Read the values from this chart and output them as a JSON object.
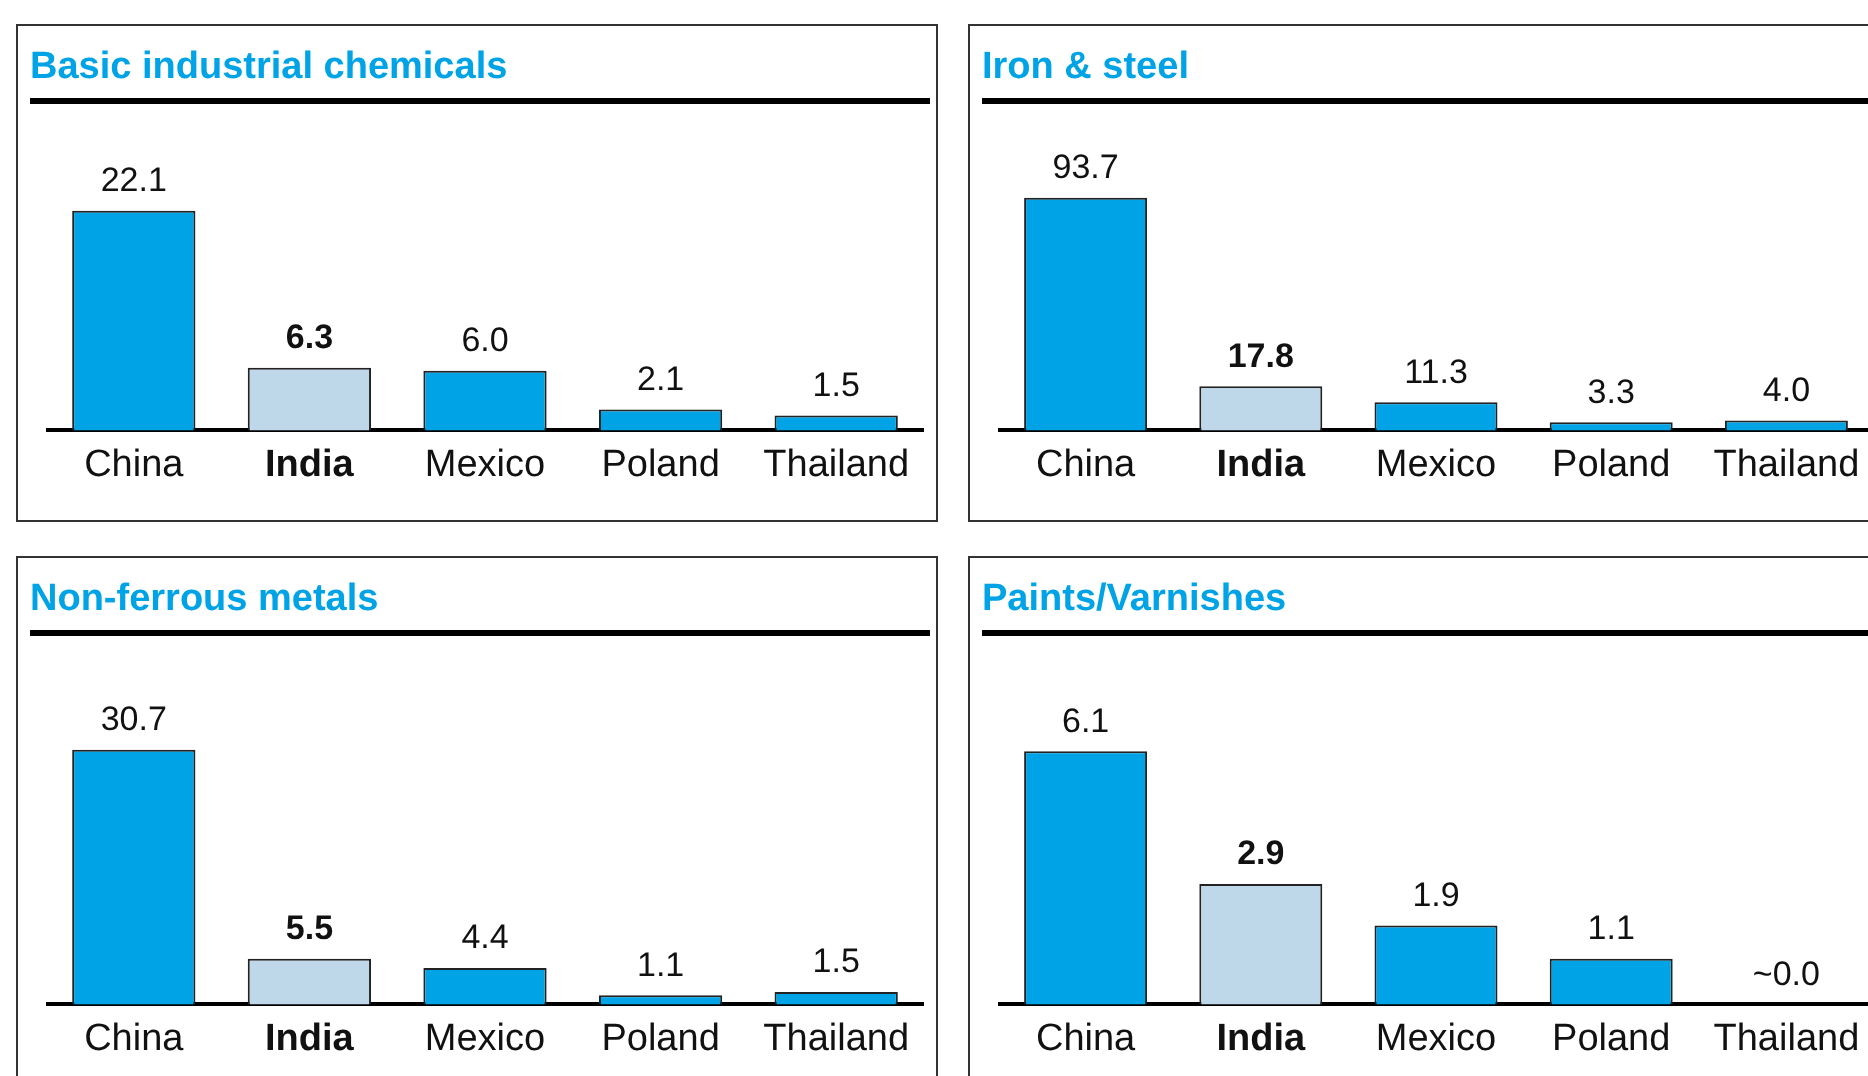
{
  "chart_data": [
    {
      "type": "bar",
      "title": "Basic industrial chemicals",
      "categories": [
        "China",
        "India",
        "Mexico",
        "Poland",
        "Thailand"
      ],
      "values": [
        22.1,
        6.3,
        6.0,
        2.1,
        1.5
      ],
      "value_labels": [
        "22.1",
        "6.3",
        "6.0",
        "2.1",
        "1.5"
      ],
      "colors": [
        "#00a3e6",
        "#bed8ea",
        "#00a3e6",
        "#00a3e6",
        "#00a3e6"
      ],
      "tick_labels": "x",
      "grid": false,
      "legend": false
    },
    {
      "type": "bar",
      "title": "Iron & steel",
      "categories": [
        "China",
        "India",
        "Mexico",
        "Poland",
        "Thailand"
      ],
      "values": [
        93.7,
        17.8,
        11.3,
        3.3,
        4.0
      ],
      "value_labels": [
        "93.7",
        "17.8",
        "11.3",
        "3.3",
        "4.0"
      ],
      "colors": [
        "#00a3e6",
        "#bed8ea",
        "#00a3e6",
        "#00a3e6",
        "#00a3e6"
      ],
      "tick_labels": "x",
      "grid": false,
      "legend": false
    },
    {
      "type": "bar",
      "title": "Non-ferrous metals",
      "categories": [
        "China",
        "India",
        "Mexico",
        "Poland",
        "Thailand"
      ],
      "values": [
        30.7,
        5.5,
        4.4,
        1.1,
        1.5
      ],
      "value_labels": [
        "30.7",
        "5.5",
        "4.4",
        "1.1",
        "1.5"
      ],
      "colors": [
        "#00a3e6",
        "#bed8ea",
        "#00a3e6",
        "#00a3e6",
        "#00a3e6"
      ],
      "tick_labels": "x",
      "grid": false,
      "legend": false
    },
    {
      "type": "bar",
      "title": "Paints/Varnishes",
      "categories": [
        "China",
        "India",
        "Mexico",
        "Poland",
        "Thailand"
      ],
      "values": [
        6.1,
        2.9,
        1.9,
        1.1,
        0.0
      ],
      "value_labels": [
        "6.1",
        "2.9",
        "1.9",
        "1.1",
        "~0.0"
      ],
      "colors": [
        "#00a3e6",
        "#bed8ea",
        "#00a3e6",
        "#00a3e6",
        "#00a3e6"
      ],
      "tick_labels": "x",
      "grid": false,
      "legend": false
    }
  ]
}
